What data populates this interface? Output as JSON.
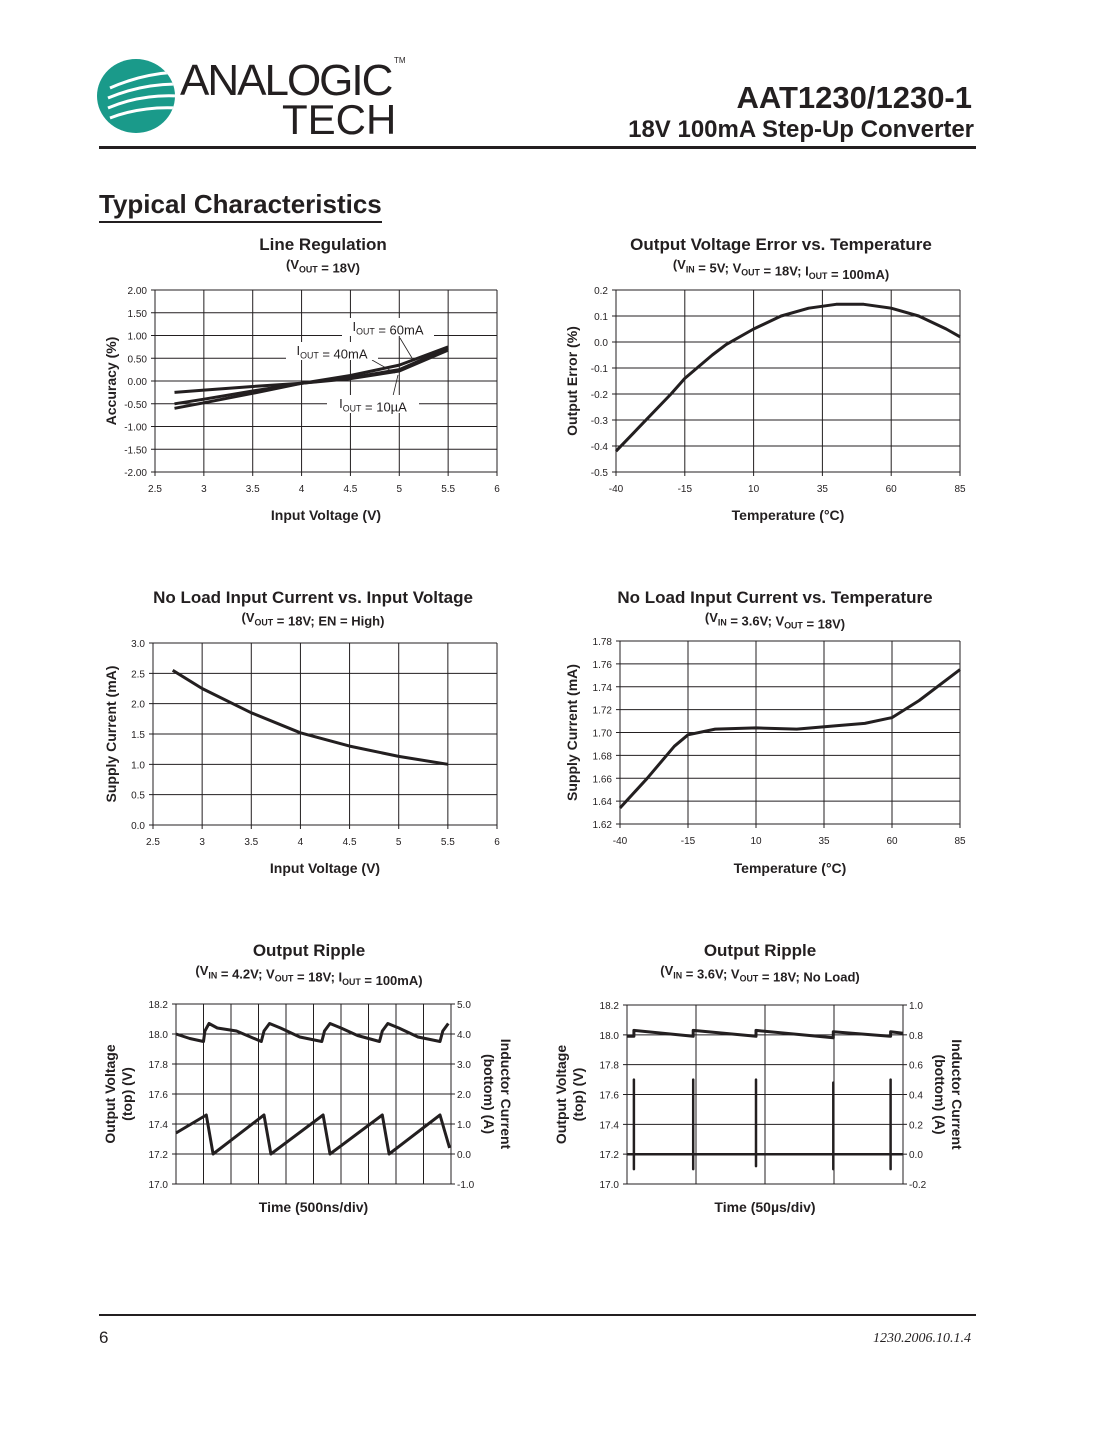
{
  "header": {
    "logo_text": "ANALOGIC",
    "logo_text2": "TECH",
    "logo_tm": "TM",
    "title": "AAT1230/1230-1",
    "subtitle": "18V 100mA Step-Up Converter"
  },
  "section_title": "Typical Characteristics",
  "footer": {
    "page_number": "6",
    "doc_code": "1230.2006.10.1.4"
  },
  "colors": {
    "ink": "#231f20",
    "logo_teal": "#1a9a8a"
  },
  "chart_data": [
    {
      "type": "line",
      "title": "Line Regulation",
      "subtitle": "(V_{OUT} = 18V)",
      "xlabel": "Input Voltage (V)",
      "ylabel": "Accuracy (%)",
      "xlim": [
        2.5,
        6
      ],
      "ylim": [
        -2,
        2
      ],
      "xticks": [
        "2.5",
        "3",
        "3.5",
        "4",
        "4.5",
        "5",
        "5.5",
        "6"
      ],
      "yticks": [
        "2.00",
        "1.50",
        "1.00",
        "0.50",
        "0.00",
        "-0.50",
        "-1.00",
        "-1.50",
        "-2.00"
      ],
      "grid": true,
      "annotations": [
        "I_{OUT} = 60mA",
        "I_{OUT} = 40mA",
        "I_{OUT} = 10µA"
      ],
      "series": [
        {
          "x": [
            2.7,
            3,
            3.5,
            4,
            4.5,
            5,
            5.5
          ],
          "y": [
            -0.25,
            -0.2,
            -0.12,
            -0.05,
            0.12,
            0.35,
            0.75
          ]
        },
        {
          "x": [
            2.7,
            3,
            3.5,
            4,
            4.5,
            5,
            5.5
          ],
          "y": [
            -0.5,
            -0.4,
            -0.22,
            -0.05,
            0.07,
            0.25,
            0.72
          ]
        },
        {
          "x": [
            2.7,
            3,
            3.5,
            4,
            4.5,
            5,
            5.5
          ],
          "y": [
            -0.6,
            -0.48,
            -0.27,
            -0.05,
            0.05,
            0.22,
            0.68
          ]
        }
      ]
    },
    {
      "type": "line",
      "title": "Output Voltage Error vs. Temperature",
      "subtitle": "(V_{IN} = 5V; V_{OUT} = 18V; I_{OUT} = 100mA)",
      "xlabel": "Temperature (°C)",
      "ylabel": "Output Error (%)",
      "xlim": [
        -40,
        85
      ],
      "ylim": [
        -0.5,
        0.2
      ],
      "xticks": [
        "-40",
        "-15",
        "10",
        "35",
        "60",
        "85"
      ],
      "yticks": [
        "0.2",
        "0.1",
        "0.0",
        "-0.1",
        "-0.2",
        "-0.3",
        "-0.4",
        "-0.5"
      ],
      "grid": true,
      "series": [
        {
          "x": [
            -40,
            -30,
            -20,
            -15,
            -5,
            0,
            10,
            20,
            30,
            40,
            50,
            60,
            70,
            80,
            85
          ],
          "y": [
            -0.42,
            -0.31,
            -0.2,
            -0.14,
            -0.05,
            -0.01,
            0.05,
            0.1,
            0.13,
            0.145,
            0.145,
            0.13,
            0.1,
            0.05,
            0.02
          ]
        }
      ]
    },
    {
      "type": "line",
      "title": "No Load Input Current vs. Input Voltage",
      "subtitle": "(V_{OUT} = 18V; EN = High)",
      "xlabel": "Input Voltage (V)",
      "ylabel": "Supply Current (mA)",
      "xlim": [
        2.5,
        6
      ],
      "ylim": [
        0,
        3
      ],
      "xticks": [
        "2.5",
        "3",
        "3.5",
        "4",
        "4.5",
        "5",
        "5.5",
        "6"
      ],
      "yticks": [
        "3.0",
        "2.5",
        "2.0",
        "1.5",
        "1.0",
        "0.5",
        "0.0"
      ],
      "grid": true,
      "series": [
        {
          "x": [
            2.7,
            3,
            3.5,
            4,
            4.5,
            5,
            5.5
          ],
          "y": [
            2.55,
            2.25,
            1.85,
            1.52,
            1.3,
            1.13,
            1.0
          ]
        }
      ]
    },
    {
      "type": "line",
      "title": "No Load Input Current vs. Temperature",
      "subtitle": "(V_{IN} = 3.6V; V_{OUT} = 18V)",
      "xlabel": "Temperature (°C)",
      "ylabel": "Supply Current (mA)",
      "xlim": [
        -40,
        85
      ],
      "ylim": [
        1.62,
        1.78
      ],
      "xticks": [
        "-40",
        "-15",
        "10",
        "35",
        "60",
        "85"
      ],
      "yticks": [
        "1.78",
        "1.76",
        "1.74",
        "1.72",
        "1.70",
        "1.68",
        "1.66",
        "1.64",
        "1.62"
      ],
      "grid": true,
      "series": [
        {
          "x": [
            -40,
            -30,
            -20,
            -15,
            -5,
            10,
            25,
            40,
            50,
            60,
            70,
            85
          ],
          "y": [
            1.634,
            1.66,
            1.688,
            1.698,
            1.703,
            1.704,
            1.703,
            1.706,
            1.708,
            1.713,
            1.728,
            1.755
          ]
        }
      ]
    },
    {
      "type": "line",
      "title": "Output Ripple",
      "subtitle": "(V_{IN} = 4.2V; V_{OUT} = 18V; I_{OUT} = 100mA)",
      "xlabel": "Time (500ns/div)",
      "ylabel": [
        "Output Voltage",
        "(top) (V)"
      ],
      "y2label": [
        "Inductor Current",
        "(bottom) (A)"
      ],
      "xlim": [
        0,
        10
      ],
      "ylim": [
        17.0,
        18.2
      ],
      "y2lim": [
        -1,
        5
      ],
      "yticks": [
        "18.2",
        "18.0",
        "17.8",
        "17.6",
        "17.4",
        "17.2",
        "17.0"
      ],
      "y2ticks": [
        "5.0",
        "4.0",
        "3.0",
        "2.0",
        "1.0",
        "0.0",
        "-1.0"
      ],
      "grid": true,
      "series": [
        {
          "axis": "left",
          "x": [
            0,
            0.5,
            1.0,
            1.05,
            1.2,
            1.5,
            2.2,
            3.1,
            3.2,
            3.4,
            3.8,
            4.5,
            5.3,
            5.4,
            5.6,
            6.0,
            6.6,
            7.4,
            7.5,
            7.7,
            8.1,
            8.8,
            9.6,
            9.7,
            9.9
          ],
          "y": [
            18.0,
            17.97,
            17.95,
            18.02,
            18.07,
            18.04,
            18.02,
            17.95,
            18.02,
            18.07,
            18.04,
            17.98,
            17.95,
            18.02,
            18.07,
            18.04,
            17.99,
            17.95,
            18.02,
            18.07,
            18.04,
            17.98,
            17.95,
            18.02,
            18.07
          ]
        },
        {
          "axis": "right",
          "x": [
            0,
            1.1,
            1.35,
            3.2,
            3.45,
            5.35,
            5.6,
            7.5,
            7.75,
            9.6,
            9.95
          ],
          "y": [
            0.7,
            1.3,
            0.0,
            1.3,
            0.0,
            1.3,
            0.0,
            1.3,
            0.0,
            1.3,
            0.2
          ]
        }
      ]
    },
    {
      "type": "line",
      "title": "Output Ripple",
      "subtitle": "(V_{IN} = 3.6V; V_{OUT} = 18V; No Load)",
      "xlabel": "Time (50µs/div)",
      "ylabel": [
        "Output Voltage",
        "(top) (V)"
      ],
      "y2label": [
        "Inductor Current",
        "(bottom) (A)"
      ],
      "xlim": [
        0,
        4
      ],
      "ylim": [
        17.0,
        18.2
      ],
      "y2lim": [
        -0.2,
        1.0
      ],
      "yticks": [
        "18.2",
        "18.0",
        "17.8",
        "17.6",
        "17.4",
        "17.2",
        "17.0"
      ],
      "y2ticks": [
        "1.0",
        "0.8",
        "0.6",
        "0.4",
        "0.2",
        "0.0",
        "-0.2"
      ],
      "grid": true,
      "series": [
        {
          "axis": "left",
          "x": [
            0,
            0.1,
            0.1,
            0.96,
            0.96,
            1.87,
            1.87,
            2.99,
            2.99,
            3.82,
            3.82,
            4.0
          ],
          "y": [
            17.99,
            17.99,
            18.03,
            17.99,
            18.03,
            17.99,
            18.03,
            17.98,
            18.02,
            17.99,
            18.02,
            18.01
          ]
        },
        {
          "axis": "right",
          "x": [
            0,
            0.1,
            0.1,
            0.1,
            0.1,
            0.96,
            0.96,
            0.96,
            0.96,
            1.87,
            1.87,
            1.87,
            1.87,
            2.99,
            2.99,
            2.99,
            2.99,
            3.82,
            3.82,
            3.82,
            3.82,
            4.0
          ],
          "y": [
            0,
            0,
            0.5,
            -0.1,
            0,
            0,
            0.5,
            -0.1,
            0,
            0,
            0.5,
            -0.08,
            0,
            0,
            0.48,
            -0.1,
            0,
            0,
            0.5,
            -0.1,
            0,
            0
          ]
        }
      ]
    }
  ]
}
